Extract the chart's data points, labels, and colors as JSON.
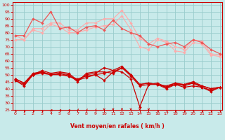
{
  "background_color": "#c8eaea",
  "grid_color": "#99cccc",
  "xlabel": "Vent moyen/en rafales ( km/h )",
  "xlabel_color": "#cc0000",
  "tick_color": "#cc0000",
  "x_ticks": [
    0,
    1,
    2,
    3,
    4,
    5,
    6,
    7,
    8,
    9,
    10,
    11,
    12,
    13,
    14,
    15,
    16,
    17,
    18,
    19,
    20,
    21,
    22,
    23
  ],
  "y_ticks": [
    25,
    30,
    35,
    40,
    45,
    50,
    55,
    60,
    65,
    70,
    75,
    80,
    85,
    90,
    95,
    100
  ],
  "ylim": [
    25,
    102
  ],
  "xlim": [
    -0.3,
    23.3
  ],
  "series": [
    {
      "color": "#ffaaaa",
      "linewidth": 0.8,
      "markersize": 2.0,
      "values": [
        78,
        75,
        82,
        80,
        86,
        84,
        80,
        80,
        82,
        84,
        85,
        86,
        92,
        82,
        70,
        68,
        75,
        73,
        67,
        66,
        73,
        72,
        64,
        63
      ]
    },
    {
      "color": "#ffaaaa",
      "linewidth": 0.8,
      "markersize": 2.0,
      "values": [
        75,
        75,
        83,
        83,
        87,
        87,
        82,
        82,
        87,
        87,
        90,
        90,
        96,
        87,
        76,
        72,
        76,
        74,
        70,
        68,
        75,
        74,
        65,
        64
      ]
    },
    {
      "color": "#ee5555",
      "linewidth": 0.9,
      "markersize": 2.0,
      "values": [
        78,
        78,
        90,
        87,
        95,
        83,
        84,
        80,
        84,
        85,
        82,
        89,
        83,
        80,
        78,
        72,
        70,
        72,
        73,
        70,
        75,
        73,
        68,
        65
      ]
    },
    {
      "color": "#cc0000",
      "linewidth": 0.9,
      "markersize": 2.0,
      "values": [
        47,
        44,
        50,
        53,
        51,
        52,
        51,
        46,
        50,
        51,
        55,
        53,
        56,
        50,
        43,
        44,
        43,
        42,
        44,
        42,
        44,
        42,
        40,
        41
      ]
    },
    {
      "color": "#cc0000",
      "linewidth": 0.9,
      "markersize": 2.0,
      "values": [
        46,
        42,
        50,
        52,
        50,
        51,
        50,
        45,
        51,
        52,
        52,
        51,
        55,
        49,
        42,
        43,
        44,
        41,
        43,
        43,
        44,
        41,
        39,
        41
      ]
    },
    {
      "color": "#cc0000",
      "linewidth": 0.9,
      "markersize": 2.0,
      "values": [
        47,
        44,
        51,
        52,
        50,
        50,
        49,
        47,
        49,
        50,
        46,
        52,
        55,
        50,
        43,
        44,
        43,
        41,
        44,
        43,
        45,
        42,
        40,
        41
      ]
    },
    {
      "color": "#cc0000",
      "linewidth": 0.9,
      "markersize": 2.0,
      "values": [
        46,
        43,
        50,
        51,
        50,
        51,
        49,
        46,
        48,
        50,
        51,
        53,
        52,
        47,
        27,
        43,
        43,
        40,
        43,
        41,
        42,
        41,
        38,
        41
      ]
    }
  ],
  "arrow_row_color": "#cc0000",
  "arrow_fontsize": 4.0
}
